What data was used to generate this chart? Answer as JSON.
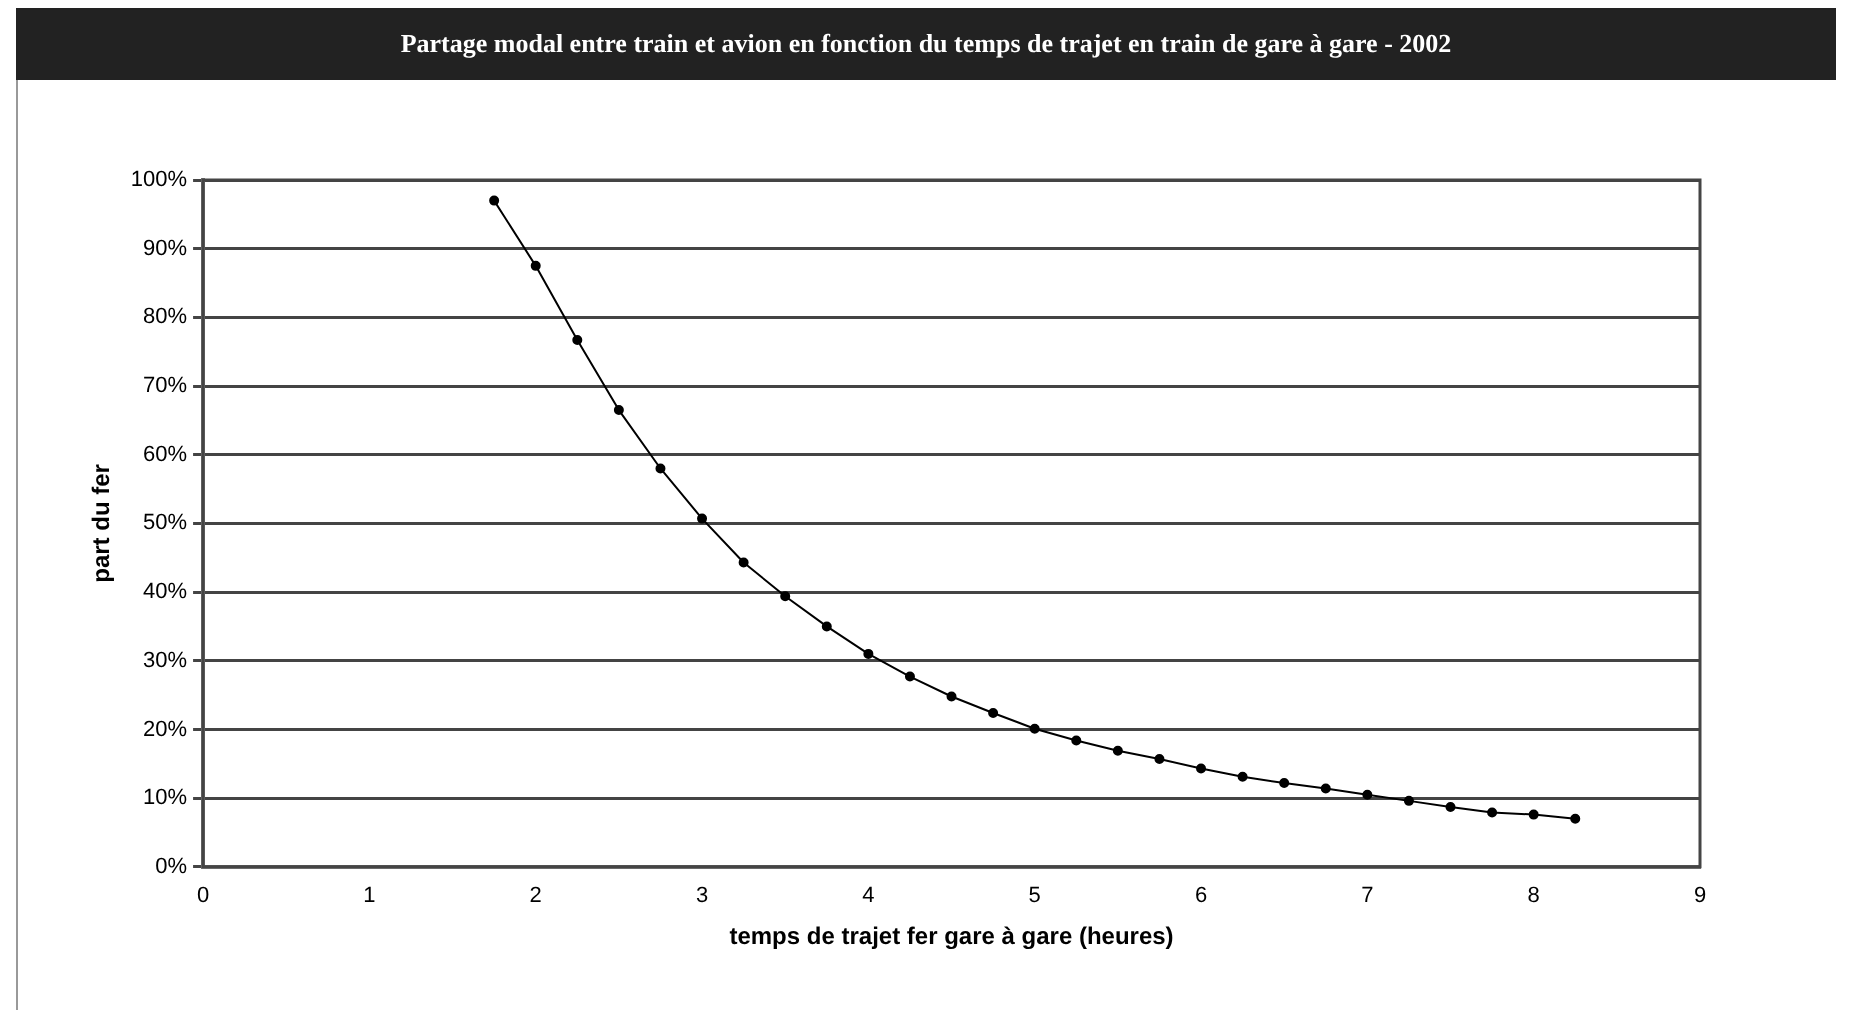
{
  "chart_data": {
    "type": "line",
    "title": "Partage modal entre train et avion en fonction du temps de trajet en train de gare à gare - 2002",
    "xlabel": "temps de trajet fer gare à gare (heures)",
    "ylabel": "part du fer",
    "x": [
      1.75,
      2,
      2.25,
      2.5,
      2.75,
      3,
      3.25,
      3.5,
      3.75,
      4,
      4.25,
      4.5,
      4.75,
      5,
      5.25,
      5.5,
      5.75,
      6,
      6.25,
      6.5,
      6.75,
      7,
      7.25,
      7.5,
      7.75,
      8,
      8.25
    ],
    "series": [
      {
        "color": "#000000",
        "values": [
          97,
          87.5,
          76.7,
          66.5,
          58,
          50.7,
          44.3,
          39.4,
          35,
          31,
          27.7,
          24.8,
          22.4,
          20.1,
          18.4,
          16.9,
          15.7,
          14.3,
          13.1,
          12.2,
          11.4,
          10.5,
          9.6,
          8.7,
          7.9,
          7.6,
          7
        ]
      }
    ],
    "xlim": [
      0,
      9
    ],
    "xticks": [
      0,
      1,
      2,
      3,
      4,
      5,
      6,
      7,
      8,
      9
    ],
    "ylim": [
      0,
      100
    ],
    "yticks": [
      {
        "value": 0,
        "label": "0%"
      },
      {
        "value": 10,
        "label": "10%"
      },
      {
        "value": 20,
        "label": "20%"
      },
      {
        "value": 30,
        "label": "30%"
      },
      {
        "value": 40,
        "label": "40%"
      },
      {
        "value": 50,
        "label": "50%"
      },
      {
        "value": 60,
        "label": "60%"
      },
      {
        "value": 70,
        "label": "70%"
      },
      {
        "value": 80,
        "label": "80%"
      },
      {
        "value": 90,
        "label": "90%"
      },
      {
        "value": 100,
        "label": "100%"
      }
    ],
    "grid": "y",
    "legend": false,
    "marker": "circle",
    "line_style": "solid"
  }
}
